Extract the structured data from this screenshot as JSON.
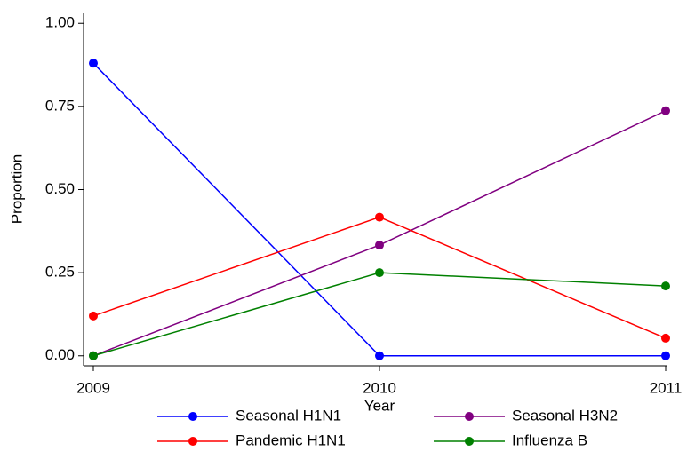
{
  "chart_data": {
    "type": "line",
    "x_label": "Year",
    "y_label": "Proportion",
    "x": [
      2009,
      2010,
      2011
    ],
    "xlim": [
      2009,
      2011
    ],
    "xticks": [
      2009,
      2010,
      2011
    ],
    "ylim": [
      -0.03,
      1.03
    ],
    "yticks": [
      {
        "value": 0,
        "label": "0.00"
      },
      {
        "value": 0.25,
        "label": "0.25"
      },
      {
        "value": 0.5,
        "label": "0.50"
      },
      {
        "value": 0.75,
        "label": "0.75"
      },
      {
        "value": 1,
        "label": "1.00"
      }
    ],
    "grid": false,
    "legend": "bottom",
    "series": [
      {
        "name": "Seasonal H1N1",
        "color": "#0000ff",
        "values": [
          0.88,
          0,
          0
        ]
      },
      {
        "name": "Seasonal H3N2",
        "color": "#800080",
        "values": [
          0,
          0.333,
          0.737
        ]
      },
      {
        "name": "Pandemic H1N1",
        "color": "#ff0000",
        "values": [
          0.12,
          0.417,
          0.053
        ]
      },
      {
        "name": "Influenza B",
        "color": "#008000",
        "values": [
          0,
          0.25,
          0.21
        ]
      }
    ]
  }
}
